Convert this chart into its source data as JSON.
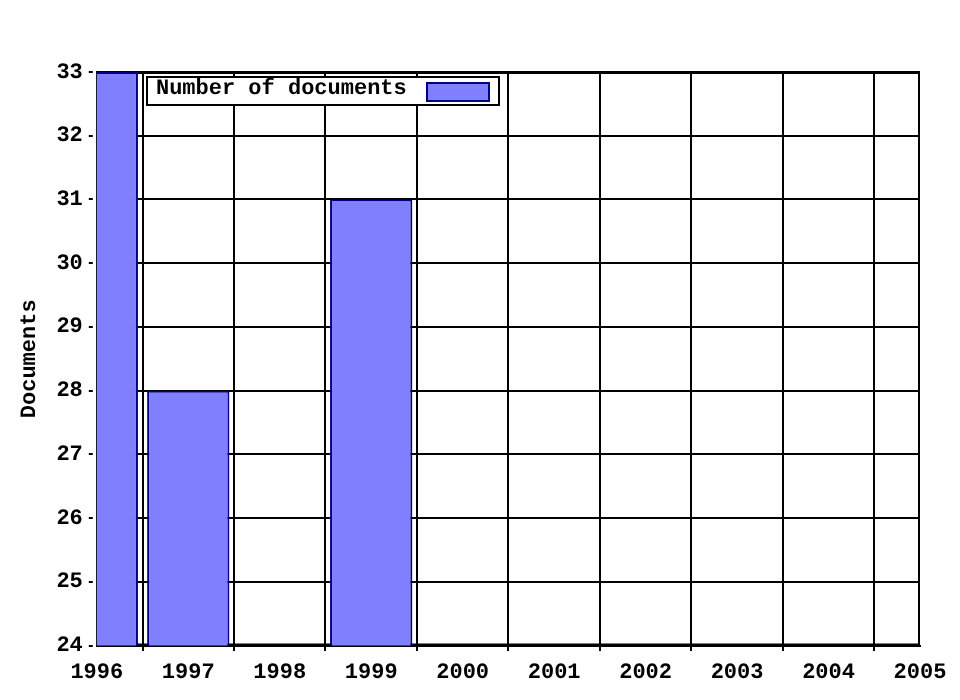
{
  "chart_data": {
    "type": "bar",
    "ylabel": "Documents",
    "x": [
      1996,
      1997,
      1999
    ],
    "series": [
      {
        "name": "Number of documents",
        "color": "#8080ff",
        "values": [
          33,
          28,
          31
        ]
      }
    ],
    "xlim": [
      1996,
      2005
    ],
    "xticks": [
      1996,
      1997,
      1998,
      1999,
      2000,
      2001,
      2002,
      2003,
      2004,
      2005
    ],
    "ylim": [
      24,
      33
    ],
    "yticks": [
      24,
      25,
      26,
      27,
      28,
      29,
      30,
      31,
      32,
      33
    ],
    "grid": true,
    "legend": "top left"
  }
}
